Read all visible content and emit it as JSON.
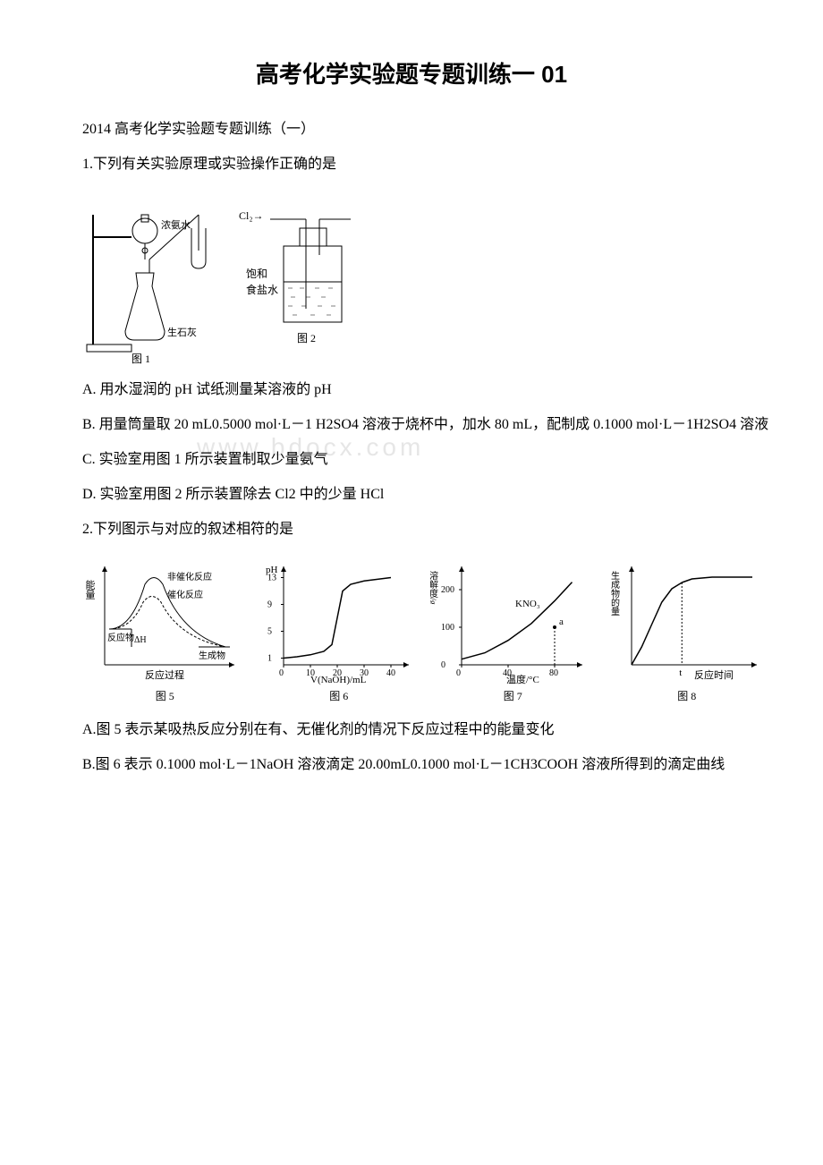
{
  "title": "高考化学实验题专题训练一 01",
  "subtitle": "2014 高考化学实验题专题训练（一）",
  "q1": {
    "stem": "1.下列有关实验原理或实验操作正确的是",
    "fig1": {
      "labels": {
        "funnel": "浓氨水",
        "flask": "生石灰",
        "caption": "图 1",
        "gas_in": "Cl₂→",
        "bottle_liquid1": "饱和",
        "bottle_liquid2": "食盐水",
        "caption2": "图 2"
      }
    },
    "optA": "A. 用水湿润的 pH 试纸测量某溶液的 pH",
    "optB": "B. 用量筒量取 20 mL0.5000 mol·L－1 H2SO4 溶液于烧杯中，加水 80 mL，配制成 0.1000 mol·L－1H2SO4 溶液",
    "optC": "C. 实验室用图 1 所示装置制取少量氨气",
    "optD": "D. 实验室用图 2 所示装置除去 Cl2 中的少量 HCl"
  },
  "q2": {
    "stem": "2.下列图示与对应的叙述相符的是",
    "charts": {
      "c5": {
        "type": "line",
        "xlabel": "反应过程",
        "ylabel": "能量",
        "caption": "图 5",
        "annot1": "非催化反应",
        "annot2": "催化反应",
        "annot3": "反应物",
        "annot4": "生成物",
        "annot5": "ΔH",
        "line_color": "#000000",
        "bg": "#ffffff"
      },
      "c6": {
        "type": "line",
        "xlabel": "V(NaOH)/mL",
        "ylabel": "pH",
        "caption": "图 6",
        "xticks": [
          0,
          10,
          20,
          30,
          40
        ],
        "yticks": [
          1,
          5,
          9,
          13
        ],
        "ylim": [
          0,
          14
        ],
        "xlim": [
          0,
          45
        ],
        "data": [
          [
            0,
            1
          ],
          [
            5,
            1.2
          ],
          [
            10,
            1.5
          ],
          [
            15,
            2
          ],
          [
            18,
            3
          ],
          [
            19,
            5
          ],
          [
            20,
            7
          ],
          [
            21,
            9
          ],
          [
            22,
            11
          ],
          [
            25,
            12
          ],
          [
            30,
            12.5
          ],
          [
            40,
            13
          ]
        ],
        "line_color": "#000000",
        "bg": "#ffffff"
      },
      "c7": {
        "type": "line",
        "xlabel": "温度/°C",
        "ylabel": "溶解度/g",
        "caption": "图 7",
        "xticks": [
          0,
          40,
          80
        ],
        "yticks": [
          0,
          100,
          200
        ],
        "series_label": "KNO₃",
        "point_label": "a",
        "point": [
          80,
          100
        ],
        "data": [
          [
            0,
            15
          ],
          [
            20,
            32
          ],
          [
            40,
            65
          ],
          [
            60,
            110
          ],
          [
            80,
            170
          ],
          [
            95,
            220
          ]
        ],
        "line_color": "#000000",
        "bg": "#ffffff"
      },
      "c8": {
        "type": "line",
        "xlabel": "反应时间",
        "ylabel": "生成物的量",
        "caption": "图 8",
        "marker": "t",
        "data": [
          [
            0,
            0
          ],
          [
            5,
            20
          ],
          [
            10,
            45
          ],
          [
            15,
            70
          ],
          [
            20,
            85
          ],
          [
            25,
            92
          ],
          [
            30,
            96
          ],
          [
            40,
            98
          ],
          [
            60,
            98
          ]
        ],
        "line_color": "#000000",
        "bg": "#ffffff"
      }
    },
    "optA": "A.图 5 表示某吸热反应分别在有、无催化剂的情况下反应过程中的能量变化",
    "optB": "B.图 6 表示 0.1000 mol·L－1NaOH 溶液滴定 20.00mL0.1000 mol·L－1CH3COOH 溶液所得到的滴定曲线"
  },
  "watermark": "www.bdocx.com",
  "colors": {
    "text": "#000000",
    "axis": "#000000",
    "bg": "#ffffff",
    "watermark": "#e6e6e6"
  },
  "fonts": {
    "title_size": 26,
    "body_size": 16,
    "caption_size": 12
  }
}
